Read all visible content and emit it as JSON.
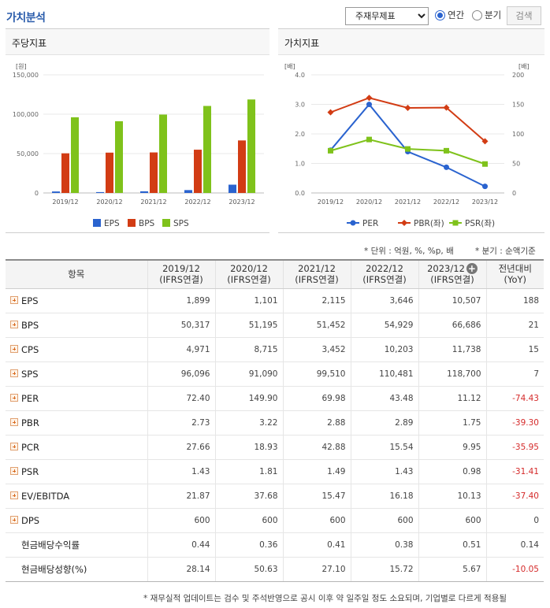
{
  "header": {
    "title": "가치분석",
    "select_value": "주재무제표",
    "radio_annual": "연간",
    "radio_quarter": "분기",
    "search_label": "검색"
  },
  "left_panel": {
    "title": "주당지표",
    "unit": "[원]"
  },
  "right_panel": {
    "title": "가치지표",
    "unit_left": "[배]",
    "unit_right": "[배]"
  },
  "notes": {
    "unit_note": "* 단위 : 억원, %, %p, 배",
    "quarter_note": "* 분기 : 순액기준"
  },
  "chart_data": [
    {
      "type": "bar",
      "title": "주당지표",
      "ylabel": "[원]",
      "categories": [
        "2019/12",
        "2020/12",
        "2021/12",
        "2022/12",
        "2023/12"
      ],
      "series": [
        {
          "name": "EPS",
          "values": [
            1899,
            1101,
            2115,
            3646,
            10507
          ],
          "color": "#2a63cf"
        },
        {
          "name": "BPS",
          "values": [
            50317,
            51195,
            51452,
            54929,
            66686
          ],
          "color": "#d23c14"
        },
        {
          "name": "SPS",
          "values": [
            96096,
            91090,
            99510,
            110481,
            118700
          ],
          "color": "#7fc21b"
        }
      ],
      "ylim": [
        0,
        150000
      ],
      "yticks": [
        "0",
        "50,000",
        "100,000",
        "150,000"
      ],
      "legend": "bottom",
      "grid": true
    },
    {
      "type": "line",
      "title": "가치지표",
      "ylabel_left": "[배]",
      "ylabel_right": "[배]",
      "categories": [
        "2019/12",
        "2020/12",
        "2021/12",
        "2022/12",
        "2023/12"
      ],
      "series": [
        {
          "name": "PER",
          "axis": "right",
          "values": [
            72.4,
            149.9,
            69.98,
            43.48,
            11.12
          ],
          "color": "#2a63cf",
          "marker": "circle"
        },
        {
          "name": "PBR(좌)",
          "axis": "left",
          "values": [
            2.73,
            3.22,
            2.88,
            2.89,
            1.75
          ],
          "color": "#d23c14",
          "marker": "diamond"
        },
        {
          "name": "PSR(좌)",
          "axis": "left",
          "values": [
            1.43,
            1.81,
            1.49,
            1.43,
            0.98
          ],
          "color": "#7fc21b",
          "marker": "square"
        }
      ],
      "ylim_left": [
        0,
        4
      ],
      "ylim_right": [
        0,
        200
      ],
      "yticks_left": [
        "0.0",
        "1.0",
        "2.0",
        "3.0",
        "4.0"
      ],
      "yticks_right": [
        "0",
        "50",
        "100",
        "150",
        "200"
      ],
      "legend": "bottom",
      "grid": true
    }
  ],
  "table": {
    "header_item": "항목",
    "periods": [
      {
        "year": "2019/12",
        "basis": "(IFRS연결)"
      },
      {
        "year": "2020/12",
        "basis": "(IFRS연결)"
      },
      {
        "year": "2021/12",
        "basis": "(IFRS연결)"
      },
      {
        "year": "2022/12",
        "basis": "(IFRS연결)"
      },
      {
        "year": "2023/12",
        "basis": "(IFRS연결)"
      }
    ],
    "yoy_header": "전년대비",
    "yoy_sub": "(YoY)",
    "rows": [
      {
        "label": "EPS",
        "expandable": true,
        "values": [
          "1,899",
          "1,101",
          "2,115",
          "3,646",
          "10,507"
        ],
        "yoy": "188",
        "neg": false
      },
      {
        "label": "BPS",
        "expandable": true,
        "values": [
          "50,317",
          "51,195",
          "51,452",
          "54,929",
          "66,686"
        ],
        "yoy": "21",
        "neg": false
      },
      {
        "label": "CPS",
        "expandable": true,
        "values": [
          "4,971",
          "8,715",
          "3,452",
          "10,203",
          "11,738"
        ],
        "yoy": "15",
        "neg": false
      },
      {
        "label": "SPS",
        "expandable": true,
        "values": [
          "96,096",
          "91,090",
          "99,510",
          "110,481",
          "118,700"
        ],
        "yoy": "7",
        "neg": false
      },
      {
        "label": "PER",
        "expandable": true,
        "values": [
          "72.40",
          "149.90",
          "69.98",
          "43.48",
          "11.12"
        ],
        "yoy": "-74.43",
        "neg": true
      },
      {
        "label": "PBR",
        "expandable": true,
        "values": [
          "2.73",
          "3.22",
          "2.88",
          "2.89",
          "1.75"
        ],
        "yoy": "-39.30",
        "neg": true
      },
      {
        "label": "PCR",
        "expandable": true,
        "values": [
          "27.66",
          "18.93",
          "42.88",
          "15.54",
          "9.95"
        ],
        "yoy": "-35.95",
        "neg": true
      },
      {
        "label": "PSR",
        "expandable": true,
        "values": [
          "1.43",
          "1.81",
          "1.49",
          "1.43",
          "0.98"
        ],
        "yoy": "-31.41",
        "neg": true
      },
      {
        "label": "EV/EBITDA",
        "expandable": true,
        "values": [
          "21.87",
          "37.68",
          "15.47",
          "16.18",
          "10.13"
        ],
        "yoy": "-37.40",
        "neg": true
      },
      {
        "label": "DPS",
        "expandable": true,
        "values": [
          "600",
          "600",
          "600",
          "600",
          "600"
        ],
        "yoy": "0",
        "neg": false
      },
      {
        "label": "현금배당수익률",
        "expandable": false,
        "values": [
          "0.44",
          "0.36",
          "0.41",
          "0.38",
          "0.51"
        ],
        "yoy": "0.14",
        "neg": false
      },
      {
        "label": "현금배당성향(%)",
        "expandable": false,
        "values": [
          "28.14",
          "50.63",
          "27.10",
          "15.72",
          "5.67"
        ],
        "yoy": "-10.05",
        "neg": true
      }
    ]
  },
  "footnote": "* 재무실적 업데이트는 검수 및 주석반영으로 공시 이후 약 일주일 정도 소요되며, 기업별로 다르게 적용될"
}
